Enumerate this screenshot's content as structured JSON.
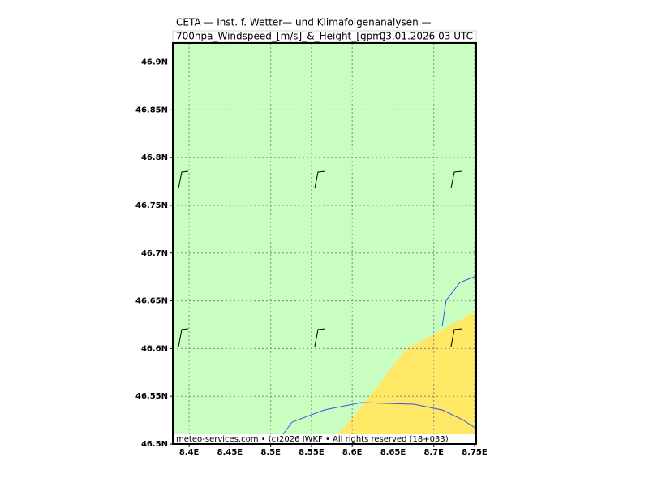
{
  "chart_data": {
    "type": "map",
    "title": "CETA — Inst. f. Wetter— und Klimafolgenanalysen —",
    "subtitle": "700hpa_Windspeed_[m/s]_&_Height_[gpm]",
    "date": "03.01.2026 03 UTC",
    "footer": "meteo-services.com • (c)2026 IWKF • All rights reserved (18+033)",
    "xlim": [
      8.38,
      8.752
    ],
    "ylim": [
      46.5,
      46.92
    ],
    "xticks": [
      {
        "value": 8.4,
        "label": "8.4E"
      },
      {
        "value": 8.45,
        "label": "8.45E"
      },
      {
        "value": 8.5,
        "label": "8.5E"
      },
      {
        "value": 8.55,
        "label": "8.55E"
      },
      {
        "value": 8.6,
        "label": "8.6E"
      },
      {
        "value": 8.65,
        "label": "8.65E"
      },
      {
        "value": 8.7,
        "label": "8.7E"
      },
      {
        "value": 8.75,
        "label": "8.75E"
      }
    ],
    "yticks": [
      {
        "value": 46.5,
        "label": "46.5N"
      },
      {
        "value": 46.55,
        "label": "46.55N"
      },
      {
        "value": 46.6,
        "label": "46.6N"
      },
      {
        "value": 46.65,
        "label": "46.65N"
      },
      {
        "value": 46.7,
        "label": "46.7N"
      },
      {
        "value": 46.75,
        "label": "46.75N"
      },
      {
        "value": 46.8,
        "label": "46.8N"
      },
      {
        "value": 46.85,
        "label": "46.85N"
      },
      {
        "value": 46.9,
        "label": "46.9N"
      }
    ],
    "grid": true
  }
}
